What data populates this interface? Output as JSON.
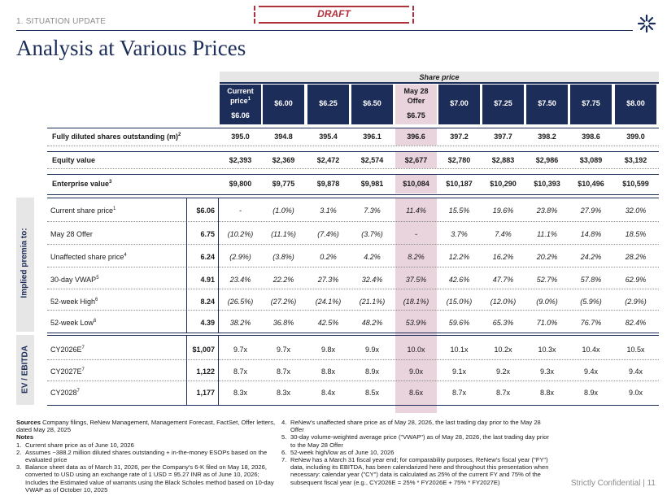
{
  "header": {
    "section_label": "1. SITUATION UPDATE",
    "draft_label": "DRAFT",
    "title": "Analysis at Various Prices",
    "logo_icon": "starburst-logo-icon"
  },
  "table": {
    "group_header": "Share price",
    "columns": [
      {
        "lines": [
          "Current",
          "price",
          "$6.06"
        ],
        "sup": "1",
        "highlight": false
      },
      {
        "lines": [
          "$6.00"
        ],
        "highlight": false
      },
      {
        "lines": [
          "$6.25"
        ],
        "highlight": false
      },
      {
        "lines": [
          "$6.50"
        ],
        "highlight": false
      },
      {
        "lines": [
          "May 28",
          "Offer",
          "$6.75"
        ],
        "highlight": true
      },
      {
        "lines": [
          "$7.00"
        ],
        "highlight": false
      },
      {
        "lines": [
          "$7.25"
        ],
        "highlight": false
      },
      {
        "lines": [
          "$7.50"
        ],
        "highlight": false
      },
      {
        "lines": [
          "$7.75"
        ],
        "highlight": false
      },
      {
        "lines": [
          "$8.00"
        ],
        "highlight": false
      }
    ],
    "summary_rows": [
      {
        "label": "Fully diluted shares outstanding (m)",
        "sup": "2",
        "values": [
          "395.0",
          "394.8",
          "395.4",
          "396.1",
          "396.6",
          "397.2",
          "397.7",
          "398.2",
          "398.6",
          "399.0"
        ]
      },
      {
        "label": "Equity value",
        "sup": "",
        "values": [
          "$2,393",
          "$2,369",
          "$2,472",
          "$2,574",
          "$2,677",
          "$2,780",
          "$2,883",
          "$2,986",
          "$3,089",
          "$3,192"
        ]
      },
      {
        "label": "Enterprise value",
        "sup": "3",
        "values": [
          "$9,800",
          "$9,775",
          "$9,878",
          "$9,981",
          "$10,084",
          "$10,187",
          "$10,290",
          "$10,393",
          "$10,496",
          "$10,599"
        ]
      }
    ],
    "premia_section_label": "Implied premia to:",
    "premia_rows": [
      {
        "label": "Current share price",
        "sup": "1",
        "ref": "$6.06",
        "values": [
          "-",
          "(1.0%)",
          "3.1%",
          "7.3%",
          "11.4%",
          "15.5%",
          "19.6%",
          "23.8%",
          "27.9%",
          "32.0%"
        ]
      },
      {
        "label": "May 28 Offer",
        "sup": "",
        "ref": "6.75",
        "values": [
          "(10.2%)",
          "(11.1%)",
          "(7.4%)",
          "(3.7%)",
          "-",
          "3.7%",
          "7.4%",
          "11.1%",
          "14.8%",
          "18.5%"
        ]
      },
      {
        "label": "Unaffected share price",
        "sup": "4",
        "ref": "6.24",
        "values": [
          "(2.9%)",
          "(3.8%)",
          "0.2%",
          "4.2%",
          "8.2%",
          "12.2%",
          "16.2%",
          "20.2%",
          "24.2%",
          "28.2%"
        ]
      },
      {
        "label": "30-day VWAP",
        "sup": "5",
        "ref": "4.91",
        "values": [
          "23.4%",
          "22.2%",
          "27.3%",
          "32.4%",
          "37.5%",
          "42.6%",
          "47.7%",
          "52.7%",
          "57.8%",
          "62.9%"
        ]
      },
      {
        "label": "52-week High",
        "sup": "6",
        "ref": "8.24",
        "values": [
          "(26.5%)",
          "(27.2%)",
          "(24.1%)",
          "(21.1%)",
          "(18.1%)",
          "(15.0%)",
          "(12.0%)",
          "(9.0%)",
          "(5.9%)",
          "(2.9%)"
        ]
      },
      {
        "label": "52-week Low",
        "sup": "6",
        "ref": "4.39",
        "values": [
          "38.2%",
          "36.8%",
          "42.5%",
          "48.2%",
          "53.9%",
          "59.6%",
          "65.3%",
          "71.0%",
          "76.7%",
          "82.4%"
        ]
      }
    ],
    "ebitda_section_label": "EV / EBITDA",
    "ebitda_rows": [
      {
        "label": "CY2026E",
        "sup": "7",
        "ref": "$1,007",
        "values": [
          "9.7x",
          "9.7x",
          "9.8x",
          "9.9x",
          "10.0x",
          "10.1x",
          "10.2x",
          "10.3x",
          "10.4x",
          "10.5x"
        ]
      },
      {
        "label": "CY2027E",
        "sup": "7",
        "ref": "1,122",
        "values": [
          "8.7x",
          "8.7x",
          "8.8x",
          "8.9x",
          "9.0x",
          "9.1x",
          "9.2x",
          "9.3x",
          "9.4x",
          "9.4x"
        ]
      },
      {
        "label": "CY2028",
        "sup": "7",
        "ref": "1,177",
        "values": [
          "8.3x",
          "8.3x",
          "8.4x",
          "8.5x",
          "8.6x",
          "8.7x",
          "8.7x",
          "8.8x",
          "8.9x",
          "9.0x"
        ]
      }
    ]
  },
  "footer": {
    "sources_label": "Sources",
    "sources_text": "Company filings, ReNew Management, Management Forecast, FactSet, Offer letters, dated May 28, 2025",
    "notes_label": "Notes",
    "notes": [
      {
        "n": "1.",
        "text": "Current share price as of June 10, 2026"
      },
      {
        "n": "2.",
        "text": "Assumes ~388.2 million diluted shares outstanding + in-the-money ESOPs based on the evaluated price"
      },
      {
        "n": "3.",
        "text": "Balance sheet data as of March 31, 2026, per the Company's 6-K filed on May 18, 2026, converted to USD using an exchange rate of 1 USD = 95.27 INR as of June 10, 2026; Includes the Estimated value of warrants using the Black Scholes method based on 10-day VWAP as of October 10, 2025"
      },
      {
        "n": "4.",
        "text": "ReNew's unaffected share price as of May 28, 2026, the last trading day prior to the May 28 Offer"
      },
      {
        "n": "5.",
        "text": "30-day volume-weighted average price (\"VWAP\") as of May 28, 2026, the last trading day prior to the May 28 Offer"
      },
      {
        "n": "6.",
        "text": "52-week high/low as of June 10, 2026"
      },
      {
        "n": "7.",
        "text": "ReNew has a March 31 fiscal year end; for comparability purposes, ReNew's fiscal year (\"FY\") data, including its EBITDA, has been calendarized here and throughout this presentation when necessary: calendar year (\"CY\") data is calculated as 25% of the current FY and 75% of the subsequent fiscal year (e.g., CY2026E = 25% * FY2026E + 75% * FY2027E)"
      }
    ],
    "confidential": "Strictly Confidential | 11"
  }
}
